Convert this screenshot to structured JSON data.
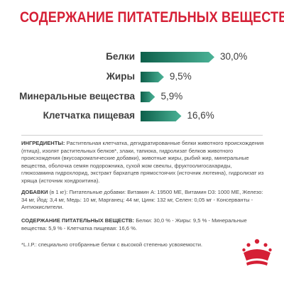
{
  "title": "СОДЕРЖАНИЕ ПИТАТЕЛЬНЫХ ВЕЩЕСТВ",
  "chart_data": {
    "type": "bar",
    "categories": [
      "Белки",
      "Жиры",
      "Минеральные вещества",
      "Клетчатка пищевая"
    ],
    "values": [
      30.0,
      9.5,
      5.9,
      16.6
    ],
    "value_labels": [
      "30,0%",
      "9,5%",
      "5,9%",
      "16,6%"
    ],
    "unit": "%",
    "orientation": "horizontal",
    "bar_color": "#2a8a6e"
  },
  "ingredients": {
    "label": "ИНГРЕДИЕНТЫ:",
    "text": " Растительная клетчатка, дегидратированные белки животного происхождения (птица), изолят растительных белков*, злаки, тапиока, гидролизат белков животного происхождения (вкусоароматические добавки), животные жиры, рыбий жир, минеральные вещества, оболочка семян подорожника, сухой жом свеклы, фруктоолигосахариды, глюкозамина гидрохлорид, экстракт бархатцев прямостоячих (источник лютеина), гидролизат из хряща (источник хондроитина)."
  },
  "additives": {
    "label": "ДОБАВКИ",
    "text": " (в 1 кг): Питательные добавки: Витамин А: 19500 МЕ, Витамин D3: 1000 МЕ, Железо: 34 мг, Йод: 3,4 мг, Медь: 10 мг, Марганец: 44 мг, Цинк: 132 мг, Селен: 0,05 мг - Консерванты - Антиокислители."
  },
  "nutrients": {
    "label": "СОДЕРЖАНИЕ ПИТАТЕЛЬНЫХ ВЕЩЕСТВ:",
    "text": " Белки: 30,0 % - Жиры: 9,5 % - Минеральные вещества: 5,9 % - Клетчатка пищевая: 16,6 %."
  },
  "footnote": "*L.I.P.: специально отобранные белки с высокой степенью усвояемости.",
  "logo_icon": "royal-canin-crown-logo",
  "brand_color": "#d51f35"
}
